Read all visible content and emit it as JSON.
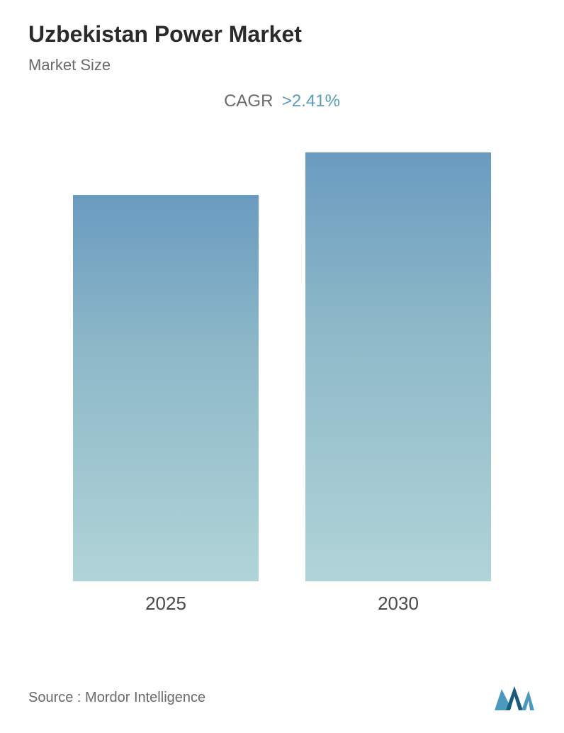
{
  "title": "Uzbekistan Power Market",
  "subtitle": "Market Size",
  "cagr": {
    "label": "CAGR",
    "value": ">2.41%"
  },
  "chart": {
    "type": "bar",
    "categories": [
      "2025",
      "2030"
    ],
    "values": [
      545,
      605
    ],
    "max_height": 650,
    "bar_gradient_top": "#6a9bc0",
    "bar_gradient_mid": "#8db8c8",
    "bar_gradient_bottom": "#b0d4d8",
    "background_color": "#ffffff",
    "bar_width_percent": 40,
    "label_fontsize": 26,
    "label_color": "#4a4a4a"
  },
  "footer": {
    "source": "Source :  Mordor Intelligence",
    "logo_colors": {
      "primary": "#1a5a7a",
      "secondary": "#4a9ac0"
    }
  }
}
